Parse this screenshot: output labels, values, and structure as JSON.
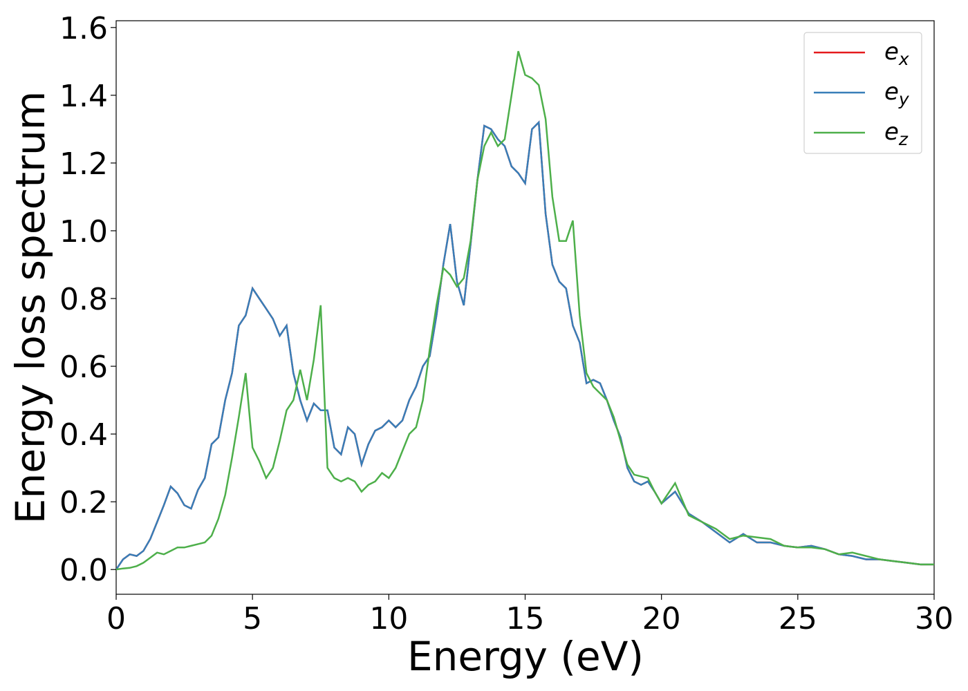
{
  "chart_data": {
    "type": "line",
    "x_label": "Energy (eV)",
    "y_label": "Energy loss spectrum",
    "x": [
      0,
      0.25,
      0.5,
      0.75,
      1,
      1.25,
      1.5,
      1.75,
      2,
      2.25,
      2.5,
      2.75,
      3,
      3.25,
      3.5,
      3.75,
      4,
      4.25,
      4.5,
      4.75,
      5,
      5.25,
      5.5,
      5.75,
      6,
      6.25,
      6.5,
      6.75,
      7,
      7.25,
      7.5,
      7.75,
      8,
      8.25,
      8.5,
      8.75,
      9,
      9.25,
      9.5,
      9.75,
      10,
      10.25,
      10.5,
      10.75,
      11,
      11.25,
      11.5,
      11.75,
      12,
      12.25,
      12.5,
      12.75,
      13,
      13.25,
      13.5,
      13.75,
      14,
      14.25,
      14.5,
      14.75,
      15,
      15.25,
      15.5,
      15.75,
      16,
      16.25,
      16.5,
      16.75,
      17,
      17.25,
      17.5,
      17.75,
      18,
      18.25,
      18.5,
      18.75,
      19,
      19.25,
      19.5,
      19.75,
      20,
      20.5,
      21,
      21.5,
      22,
      22.5,
      23,
      23.5,
      24,
      24.5,
      25,
      25.5,
      26,
      26.5,
      27,
      27.5,
      28,
      28.5,
      29,
      29.5,
      30
    ],
    "series": [
      {
        "name": "e_x",
        "color": "#e41a1c",
        "values": [
          0,
          0.03,
          0.045,
          0.04,
          0.055,
          0.09,
          0.14,
          0.19,
          0.245,
          0.225,
          0.19,
          0.18,
          0.235,
          0.27,
          0.37,
          0.39,
          0.5,
          0.58,
          0.72,
          0.75,
          0.83,
          0.8,
          0.77,
          0.74,
          0.69,
          0.72,
          0.58,
          0.5,
          0.44,
          0.49,
          0.47,
          0.47,
          0.36,
          0.34,
          0.42,
          0.4,
          0.31,
          0.37,
          0.41,
          0.42,
          0.44,
          0.42,
          0.44,
          0.5,
          0.54,
          0.6,
          0.63,
          0.75,
          0.9,
          1.02,
          0.85,
          0.78,
          0.96,
          1.15,
          1.31,
          1.3,
          1.27,
          1.25,
          1.19,
          1.17,
          1.14,
          1.3,
          1.32,
          1.05,
          0.9,
          0.85,
          0.83,
          0.72,
          0.67,
          0.55,
          0.56,
          0.55,
          0.5,
          0.44,
          0.39,
          0.3,
          0.26,
          0.25,
          0.26,
          0.23,
          0.195,
          0.23,
          0.165,
          0.14,
          0.11,
          0.08,
          0.105,
          0.08,
          0.08,
          0.07,
          0.065,
          0.07,
          0.06,
          0.045,
          0.04,
          0.03,
          0.03,
          0.025,
          0.02,
          0.015,
          0.015
        ]
      },
      {
        "name": "e_y",
        "color": "#377eb8",
        "values": [
          0,
          0.03,
          0.045,
          0.04,
          0.055,
          0.09,
          0.14,
          0.19,
          0.245,
          0.225,
          0.19,
          0.18,
          0.235,
          0.27,
          0.37,
          0.39,
          0.5,
          0.58,
          0.72,
          0.75,
          0.83,
          0.8,
          0.77,
          0.74,
          0.69,
          0.72,
          0.58,
          0.5,
          0.44,
          0.49,
          0.47,
          0.47,
          0.36,
          0.34,
          0.42,
          0.4,
          0.31,
          0.37,
          0.41,
          0.42,
          0.44,
          0.42,
          0.44,
          0.5,
          0.54,
          0.6,
          0.63,
          0.75,
          0.9,
          1.02,
          0.85,
          0.78,
          0.96,
          1.15,
          1.31,
          1.3,
          1.27,
          1.25,
          1.19,
          1.17,
          1.14,
          1.3,
          1.32,
          1.05,
          0.9,
          0.85,
          0.83,
          0.72,
          0.67,
          0.55,
          0.56,
          0.55,
          0.5,
          0.44,
          0.39,
          0.3,
          0.26,
          0.25,
          0.26,
          0.23,
          0.195,
          0.23,
          0.165,
          0.14,
          0.11,
          0.08,
          0.105,
          0.08,
          0.08,
          0.07,
          0.065,
          0.07,
          0.06,
          0.045,
          0.04,
          0.03,
          0.03,
          0.025,
          0.02,
          0.015,
          0.015
        ]
      },
      {
        "name": "e_z",
        "color": "#4daf4a",
        "values": [
          0,
          0.003,
          0.005,
          0.01,
          0.02,
          0.035,
          0.05,
          0.045,
          0.055,
          0.065,
          0.065,
          0.07,
          0.075,
          0.08,
          0.1,
          0.15,
          0.22,
          0.33,
          0.45,
          0.58,
          0.36,
          0.32,
          0.27,
          0.3,
          0.38,
          0.47,
          0.5,
          0.59,
          0.5,
          0.62,
          0.78,
          0.3,
          0.27,
          0.26,
          0.27,
          0.26,
          0.23,
          0.25,
          0.26,
          0.285,
          0.27,
          0.3,
          0.35,
          0.4,
          0.42,
          0.5,
          0.65,
          0.78,
          0.89,
          0.87,
          0.835,
          0.86,
          0.97,
          1.15,
          1.25,
          1.29,
          1.25,
          1.27,
          1.4,
          1.53,
          1.46,
          1.45,
          1.43,
          1.33,
          1.1,
          0.97,
          0.97,
          1.03,
          0.75,
          0.58,
          0.54,
          0.52,
          0.5,
          0.45,
          0.38,
          0.31,
          0.28,
          0.275,
          0.27,
          0.23,
          0.195,
          0.255,
          0.16,
          0.14,
          0.12,
          0.09,
          0.1,
          0.095,
          0.09,
          0.07,
          0.065,
          0.065,
          0.06,
          0.045,
          0.05,
          0.04,
          0.03,
          0.025,
          0.02,
          0.015,
          0.015
        ]
      }
    ],
    "xlim": [
      0,
      30
    ],
    "ylim": [
      -0.073,
      1.62
    ],
    "xticks": [
      0,
      5,
      10,
      15,
      20,
      25,
      30
    ],
    "yticks": [
      {
        "value": 0,
        "label": "0.0"
      },
      {
        "value": 0.2,
        "label": "0.2"
      },
      {
        "value": 0.4,
        "label": "0.4"
      },
      {
        "value": 0.6,
        "label": "0.6"
      },
      {
        "value": 0.8,
        "label": "0.8"
      },
      {
        "value": 1,
        "label": "1.0"
      },
      {
        "value": 1.2,
        "label": "1.2"
      },
      {
        "value": 1.4,
        "label": "1.4"
      },
      {
        "value": 1.6,
        "label": "1.6"
      }
    ],
    "legend": "upper right",
    "grid": false
  }
}
